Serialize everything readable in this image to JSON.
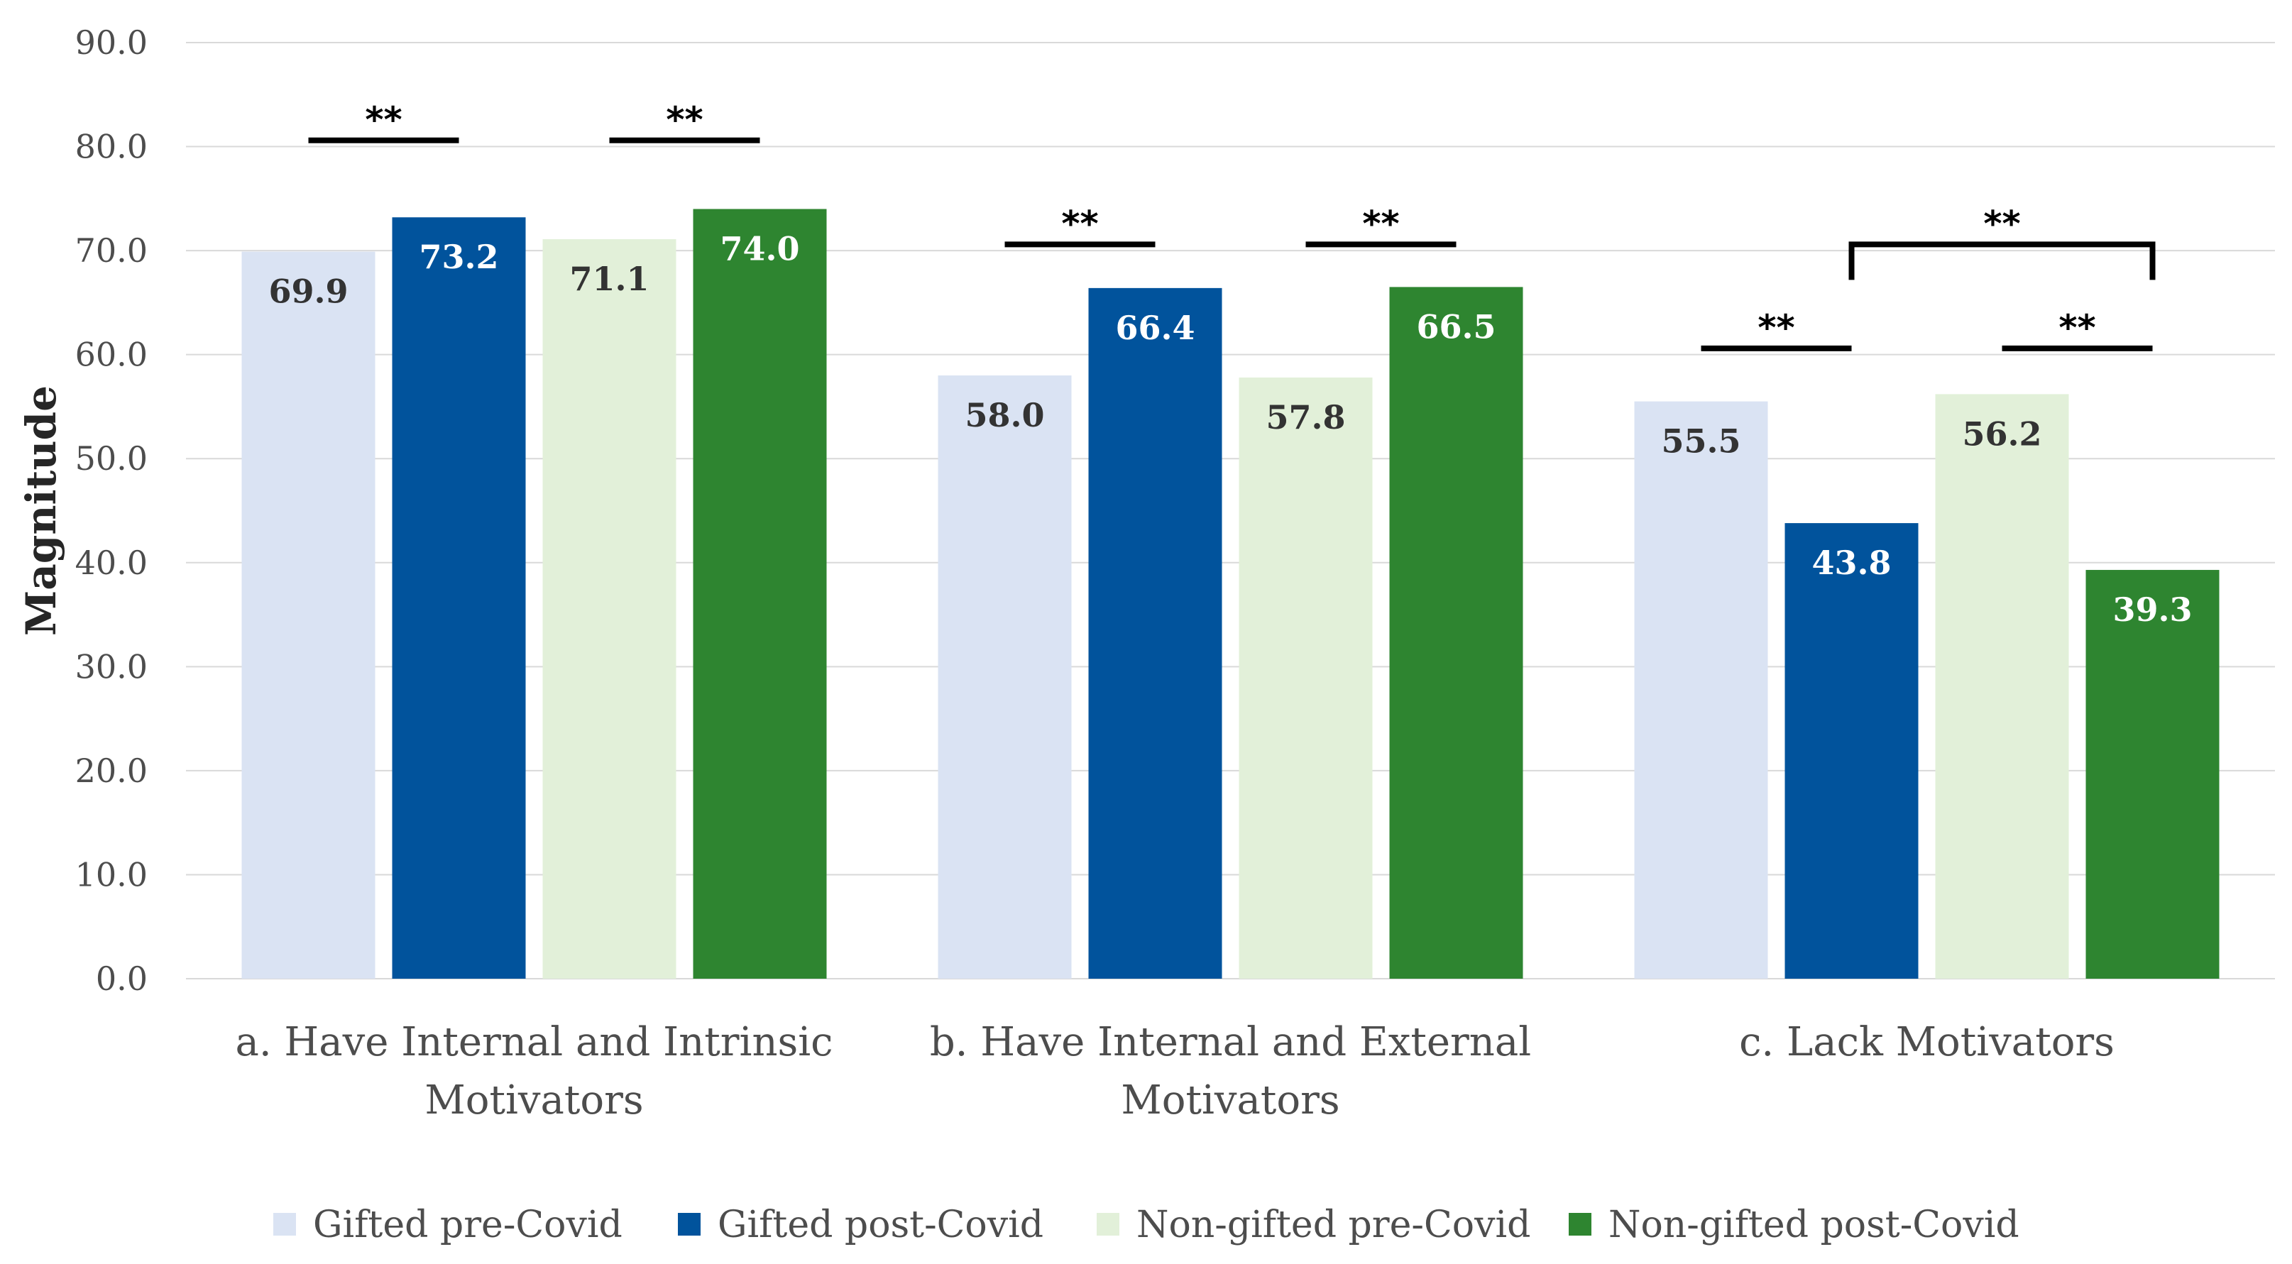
{
  "chart_data": {
    "type": "bar",
    "title": "",
    "xlabel": "",
    "ylabel": "Magnitude",
    "ylim": [
      0,
      90
    ],
    "ytick_step": 10,
    "ytick_labels": [
      "0.0",
      "10.0",
      "20.0",
      "30.0",
      "40.0",
      "50.0",
      "60.0",
      "70.0",
      "80.0",
      "90.0"
    ],
    "grid": true,
    "legend_position": "bottom",
    "categories": [
      [
        "a. Have Internal and Intrinsic",
        "Motivators"
      ],
      [
        "b. Have Internal and External",
        "Motivators"
      ],
      [
        "c. Lack Motivators"
      ]
    ],
    "series": [
      {
        "name": "Gifted pre-Covid",
        "color": "#dae3f3",
        "label_color": "#333333",
        "values": [
          69.9,
          58.0,
          55.5
        ],
        "labels": [
          "69.9",
          "58.0",
          "55.5"
        ]
      },
      {
        "name": "Gifted post-Covid",
        "color": "#01539c",
        "label_color": "#ffffff",
        "values": [
          73.2,
          66.4,
          43.8
        ],
        "labels": [
          "73.2",
          "66.4",
          "43.8"
        ]
      },
      {
        "name": "Non-gifted pre-Covid",
        "color": "#e2f0d9",
        "label_color": "#333333",
        "values": [
          71.1,
          57.8,
          56.2
        ],
        "labels": [
          "71.1",
          "57.8",
          "56.2"
        ]
      },
      {
        "name": "Non-gifted post-Covid",
        "color": "#2e8530",
        "label_color": "#ffffff",
        "values": [
          74.0,
          66.5,
          39.3
        ],
        "labels": [
          "74.0",
          "66.5",
          "39.3"
        ]
      }
    ],
    "significance": [
      {
        "category": 0,
        "from_series": 0,
        "to_series": 1,
        "y": 80.6,
        "text": "**"
      },
      {
        "category": 0,
        "from_series": 2,
        "to_series": 3,
        "y": 80.6,
        "text": "**"
      },
      {
        "category": 1,
        "from_series": 0,
        "to_series": 1,
        "y": 70.6,
        "text": "**"
      },
      {
        "category": 1,
        "from_series": 2,
        "to_series": 3,
        "y": 70.6,
        "text": "**"
      },
      {
        "category": 2,
        "from_series": 0,
        "to_series": 1,
        "y": 60.6,
        "text": "**"
      },
      {
        "category": 2,
        "from_series": 2,
        "to_series": 3,
        "y": 60.6,
        "text": "**"
      },
      {
        "category": 2,
        "from_series": 1,
        "to_series": 3,
        "y": 70.6,
        "text": "**",
        "bracket": true
      }
    ]
  }
}
